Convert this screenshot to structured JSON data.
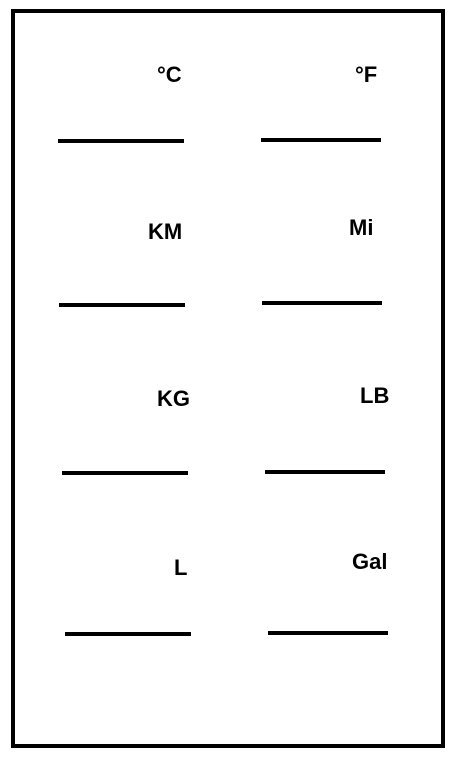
{
  "converter": {
    "rows": [
      {
        "left_unit": "°C",
        "right_unit": "°F"
      },
      {
        "left_unit": "KM",
        "right_unit": "Mi"
      },
      {
        "left_unit": "KG",
        "right_unit": "LB"
      },
      {
        "left_unit": "L",
        "right_unit": "Gal"
      }
    ]
  },
  "colors": {
    "background": "#ffffff",
    "ink": "#000000"
  }
}
